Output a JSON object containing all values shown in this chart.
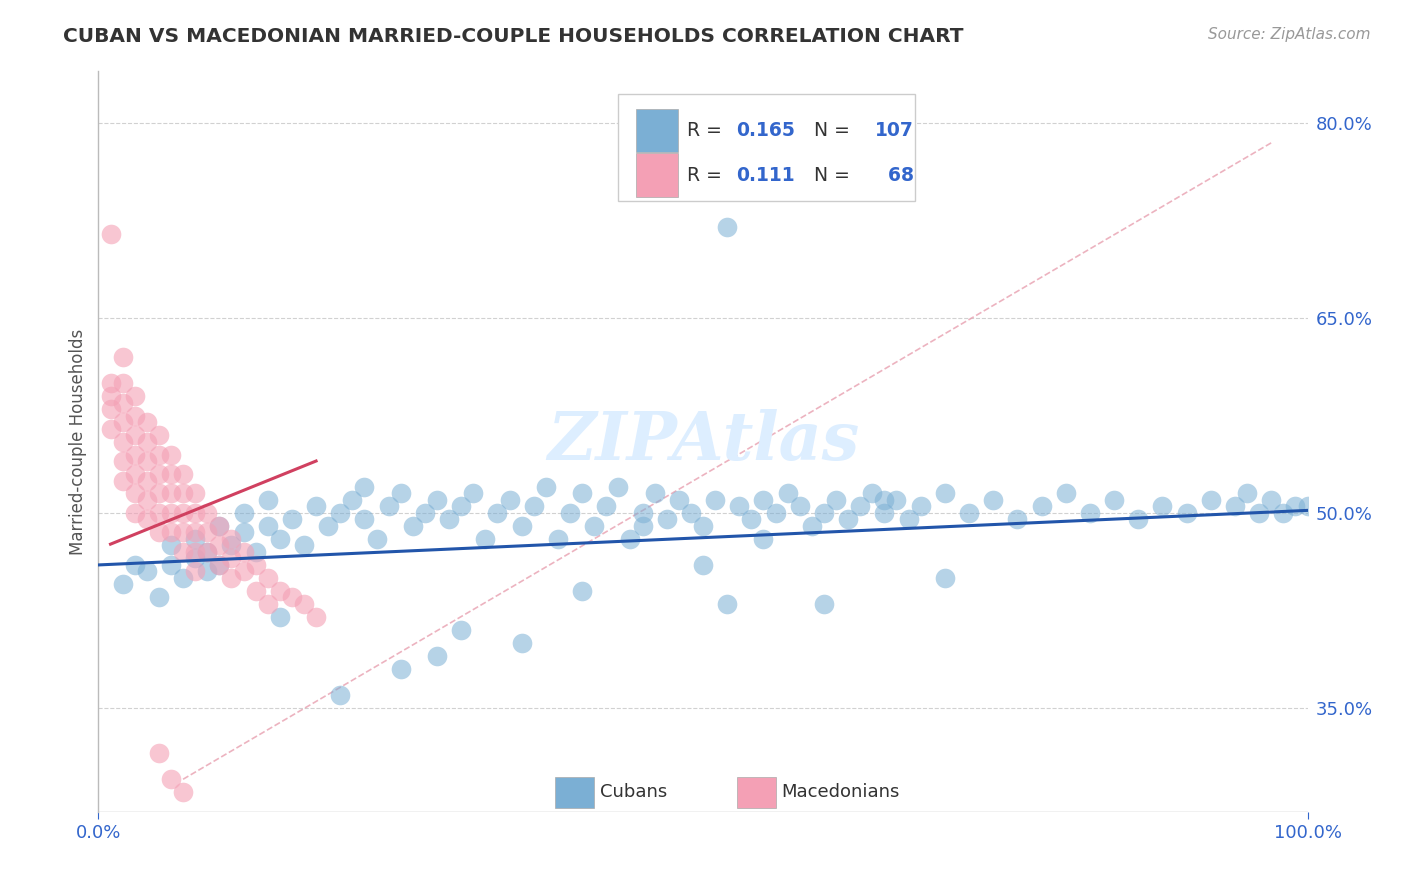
{
  "title": "CUBAN VS MACEDONIAN MARRIED-COUPLE HOUSEHOLDS CORRELATION CHART",
  "source_text": "Source: ZipAtlas.com",
  "ylabel": "Married-couple Households",
  "xlim": [
    0.0,
    1.0
  ],
  "ylim": [
    0.27,
    0.84
  ],
  "yticks": [
    0.35,
    0.5,
    0.65,
    0.8
  ],
  "ytick_labels": [
    "35.0%",
    "50.0%",
    "65.0%",
    "80.0%"
  ],
  "blue_color": "#7BAFD4",
  "pink_color": "#F4A0B5",
  "trend_blue": "#2255AA",
  "trend_pink": "#D04060",
  "ref_line_color": "#E8A0B0",
  "background_color": "#FFFFFF",
  "title_color": "#333333",
  "axis_label_color": "#555555",
  "tick_color": "#3366CC",
  "grid_color": "#CCCCCC",
  "legend_box_color": "#DDDDDD",
  "watermark_color": "#DDEEFF",
  "r_cuban": "0.165",
  "n_cuban": "107",
  "r_mac": "0.111",
  "n_mac": "68",
  "cuban_x": [
    0.02,
    0.03,
    0.04,
    0.05,
    0.06,
    0.06,
    0.07,
    0.08,
    0.08,
    0.09,
    0.09,
    0.1,
    0.1,
    0.11,
    0.12,
    0.12,
    0.13,
    0.14,
    0.14,
    0.15,
    0.16,
    0.17,
    0.18,
    0.19,
    0.2,
    0.21,
    0.22,
    0.22,
    0.23,
    0.24,
    0.25,
    0.26,
    0.27,
    0.28,
    0.29,
    0.3,
    0.31,
    0.32,
    0.33,
    0.34,
    0.35,
    0.36,
    0.37,
    0.38,
    0.39,
    0.4,
    0.41,
    0.42,
    0.43,
    0.44,
    0.45,
    0.46,
    0.47,
    0.48,
    0.49,
    0.5,
    0.51,
    0.52,
    0.53,
    0.54,
    0.55,
    0.56,
    0.57,
    0.58,
    0.59,
    0.6,
    0.61,
    0.62,
    0.63,
    0.64,
    0.65,
    0.66,
    0.67,
    0.68,
    0.7,
    0.72,
    0.74,
    0.76,
    0.78,
    0.8,
    0.82,
    0.84,
    0.86,
    0.88,
    0.9,
    0.92,
    0.94,
    0.95,
    0.96,
    0.97,
    0.98,
    0.99,
    1.0,
    0.52,
    0.28,
    0.2,
    0.25,
    0.35,
    0.15,
    0.3,
    0.4,
    0.6,
    0.7,
    0.5,
    0.65,
    0.55,
    0.45
  ],
  "cuban_y": [
    0.445,
    0.46,
    0.455,
    0.435,
    0.46,
    0.475,
    0.45,
    0.465,
    0.48,
    0.455,
    0.47,
    0.46,
    0.49,
    0.475,
    0.485,
    0.5,
    0.47,
    0.49,
    0.51,
    0.48,
    0.495,
    0.475,
    0.505,
    0.49,
    0.5,
    0.51,
    0.495,
    0.52,
    0.48,
    0.505,
    0.515,
    0.49,
    0.5,
    0.51,
    0.495,
    0.505,
    0.515,
    0.48,
    0.5,
    0.51,
    0.49,
    0.505,
    0.52,
    0.48,
    0.5,
    0.515,
    0.49,
    0.505,
    0.52,
    0.48,
    0.5,
    0.515,
    0.495,
    0.51,
    0.5,
    0.49,
    0.51,
    0.72,
    0.505,
    0.495,
    0.51,
    0.5,
    0.515,
    0.505,
    0.49,
    0.5,
    0.51,
    0.495,
    0.505,
    0.515,
    0.5,
    0.51,
    0.495,
    0.505,
    0.515,
    0.5,
    0.51,
    0.495,
    0.505,
    0.515,
    0.5,
    0.51,
    0.495,
    0.505,
    0.5,
    0.51,
    0.505,
    0.515,
    0.5,
    0.51,
    0.5,
    0.505,
    0.505,
    0.43,
    0.39,
    0.36,
    0.38,
    0.4,
    0.42,
    0.41,
    0.44,
    0.43,
    0.45,
    0.46,
    0.51,
    0.48,
    0.49
  ],
  "mac_x": [
    0.01,
    0.01,
    0.01,
    0.01,
    0.01,
    0.02,
    0.02,
    0.02,
    0.02,
    0.02,
    0.02,
    0.02,
    0.03,
    0.03,
    0.03,
    0.03,
    0.03,
    0.03,
    0.03,
    0.04,
    0.04,
    0.04,
    0.04,
    0.04,
    0.04,
    0.05,
    0.05,
    0.05,
    0.05,
    0.05,
    0.05,
    0.06,
    0.06,
    0.06,
    0.06,
    0.06,
    0.07,
    0.07,
    0.07,
    0.07,
    0.07,
    0.08,
    0.08,
    0.08,
    0.08,
    0.08,
    0.09,
    0.09,
    0.09,
    0.1,
    0.1,
    0.1,
    0.11,
    0.11,
    0.11,
    0.12,
    0.12,
    0.13,
    0.13,
    0.14,
    0.14,
    0.15,
    0.16,
    0.17,
    0.18,
    0.05,
    0.06,
    0.07
  ],
  "mac_y": [
    0.715,
    0.6,
    0.59,
    0.58,
    0.565,
    0.62,
    0.6,
    0.585,
    0.57,
    0.555,
    0.54,
    0.525,
    0.59,
    0.575,
    0.56,
    0.545,
    0.53,
    0.515,
    0.5,
    0.57,
    0.555,
    0.54,
    0.525,
    0.51,
    0.495,
    0.56,
    0.545,
    0.53,
    0.515,
    0.5,
    0.485,
    0.545,
    0.53,
    0.515,
    0.5,
    0.485,
    0.53,
    0.515,
    0.5,
    0.485,
    0.47,
    0.515,
    0.5,
    0.485,
    0.47,
    0.455,
    0.5,
    0.485,
    0.47,
    0.49,
    0.475,
    0.46,
    0.48,
    0.465,
    0.45,
    0.47,
    0.455,
    0.46,
    0.44,
    0.45,
    0.43,
    0.44,
    0.435,
    0.43,
    0.42,
    0.315,
    0.295,
    0.285
  ]
}
